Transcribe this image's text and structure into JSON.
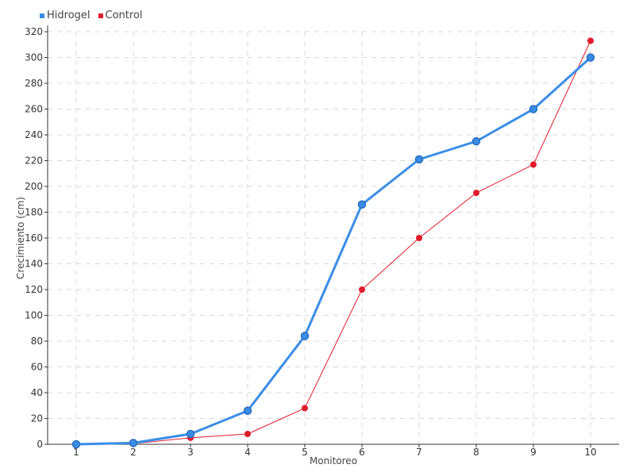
{
  "chart_data": {
    "type": "line",
    "title": "",
    "xlabel": "Monitoreo",
    "ylabel": "Crecimiento (cm)",
    "categories": [
      "1",
      "2",
      "3",
      "4",
      "5",
      "6",
      "7",
      "8",
      "9",
      "10"
    ],
    "ylim": [
      0,
      320
    ],
    "yticks": [
      0,
      20,
      40,
      60,
      80,
      100,
      120,
      140,
      160,
      180,
      200,
      220,
      240,
      260,
      280,
      300,
      320
    ],
    "grid": true,
    "legend_position": "top-left",
    "series": [
      {
        "name": "Hidrogel",
        "color": "#3a8de6",
        "values": [
          0,
          1,
          8,
          26,
          84,
          186,
          221,
          235,
          260,
          300
        ]
      },
      {
        "name": "Control",
        "color": "#e01c2b",
        "values": [
          0,
          0.5,
          5,
          8,
          28,
          120,
          160,
          195,
          217,
          313
        ]
      }
    ]
  }
}
